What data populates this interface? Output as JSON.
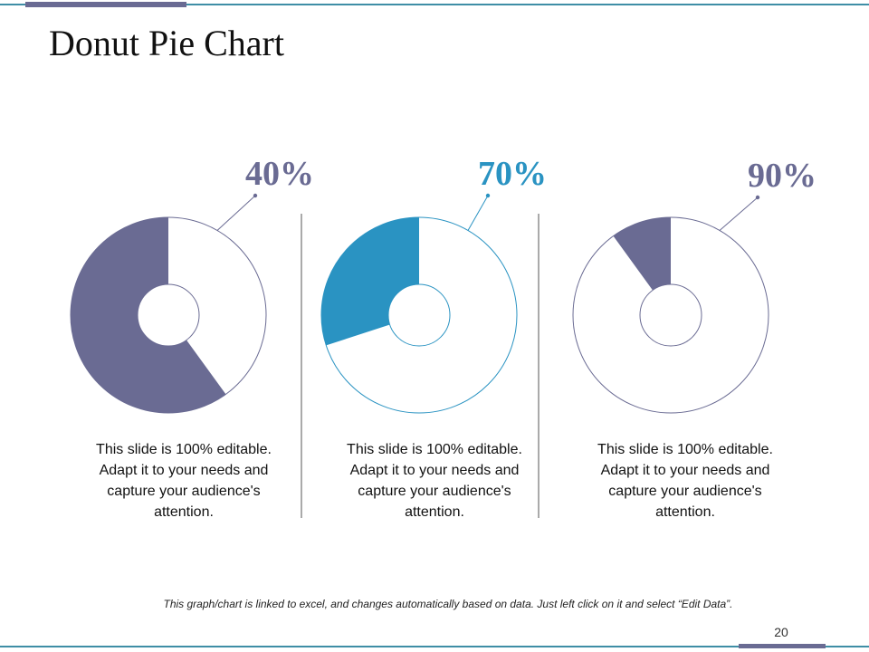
{
  "slide": {
    "title": "Donut Pie Chart",
    "footnote": "This graph/chart is linked to excel, and changes automatically based on data.  Just left click on it and select “Edit Data”.",
    "page_number": "20"
  },
  "chart_data": [
    {
      "type": "pie",
      "label": "40%",
      "filled_fraction": 0.6,
      "color": "#6a6b93",
      "caption": "This slide is 100% editable. Adapt it to your needs and capture your audience's attention."
    },
    {
      "type": "pie",
      "label": "70%",
      "filled_fraction": 0.3,
      "color": "#2a93c2",
      "caption": "This slide is 100% editable. Adapt it to your needs and capture your audience's attention."
    },
    {
      "type": "pie",
      "label": "90%",
      "filled_fraction": 0.1,
      "color": "#6a6b93",
      "caption": "This slide is 100% editable. Adapt it to your needs and capture your audience's attention."
    }
  ]
}
